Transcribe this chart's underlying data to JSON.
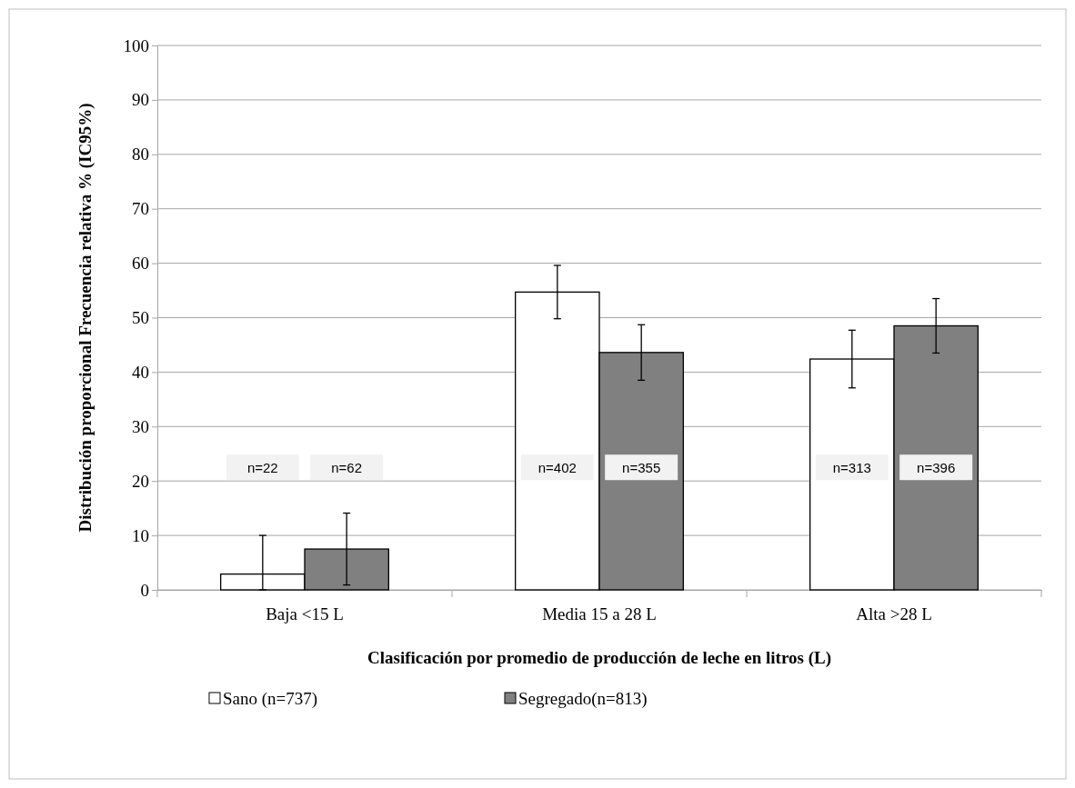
{
  "chart_data": {
    "type": "bar",
    "xlabel": "Clasificación por promedio de producción de leche en litros (L)",
    "ylabel": "Distribución proporcional Frecuencia relativa % (IC95%)",
    "categories": [
      "Baja <15 L",
      "Media 15 a 28  L",
      "Alta >28 L"
    ],
    "series": [
      {
        "name": "Sano (n=737)",
        "color": "#ffffff",
        "values": [
          2.9,
          54.7,
          42.4
        ],
        "errors": [
          [
            0,
            10
          ],
          4.9,
          5.3
        ]
      },
      {
        "name": "Segregado(n=813)",
        "color": "#808080",
        "values": [
          7.5,
          43.6,
          48.5
        ],
        "errors": [
          6.6,
          5.1,
          5.0
        ]
      }
    ],
    "ylim": [
      0,
      100
    ],
    "yticks": [
      0,
      10,
      20,
      30,
      40,
      50,
      60,
      70,
      80,
      90,
      100
    ],
    "grid": "y",
    "legend": "bottom",
    "annotations": [
      "n=22",
      "n=62",
      "n=402",
      "n=355",
      "n=313",
      "n=396"
    ]
  }
}
